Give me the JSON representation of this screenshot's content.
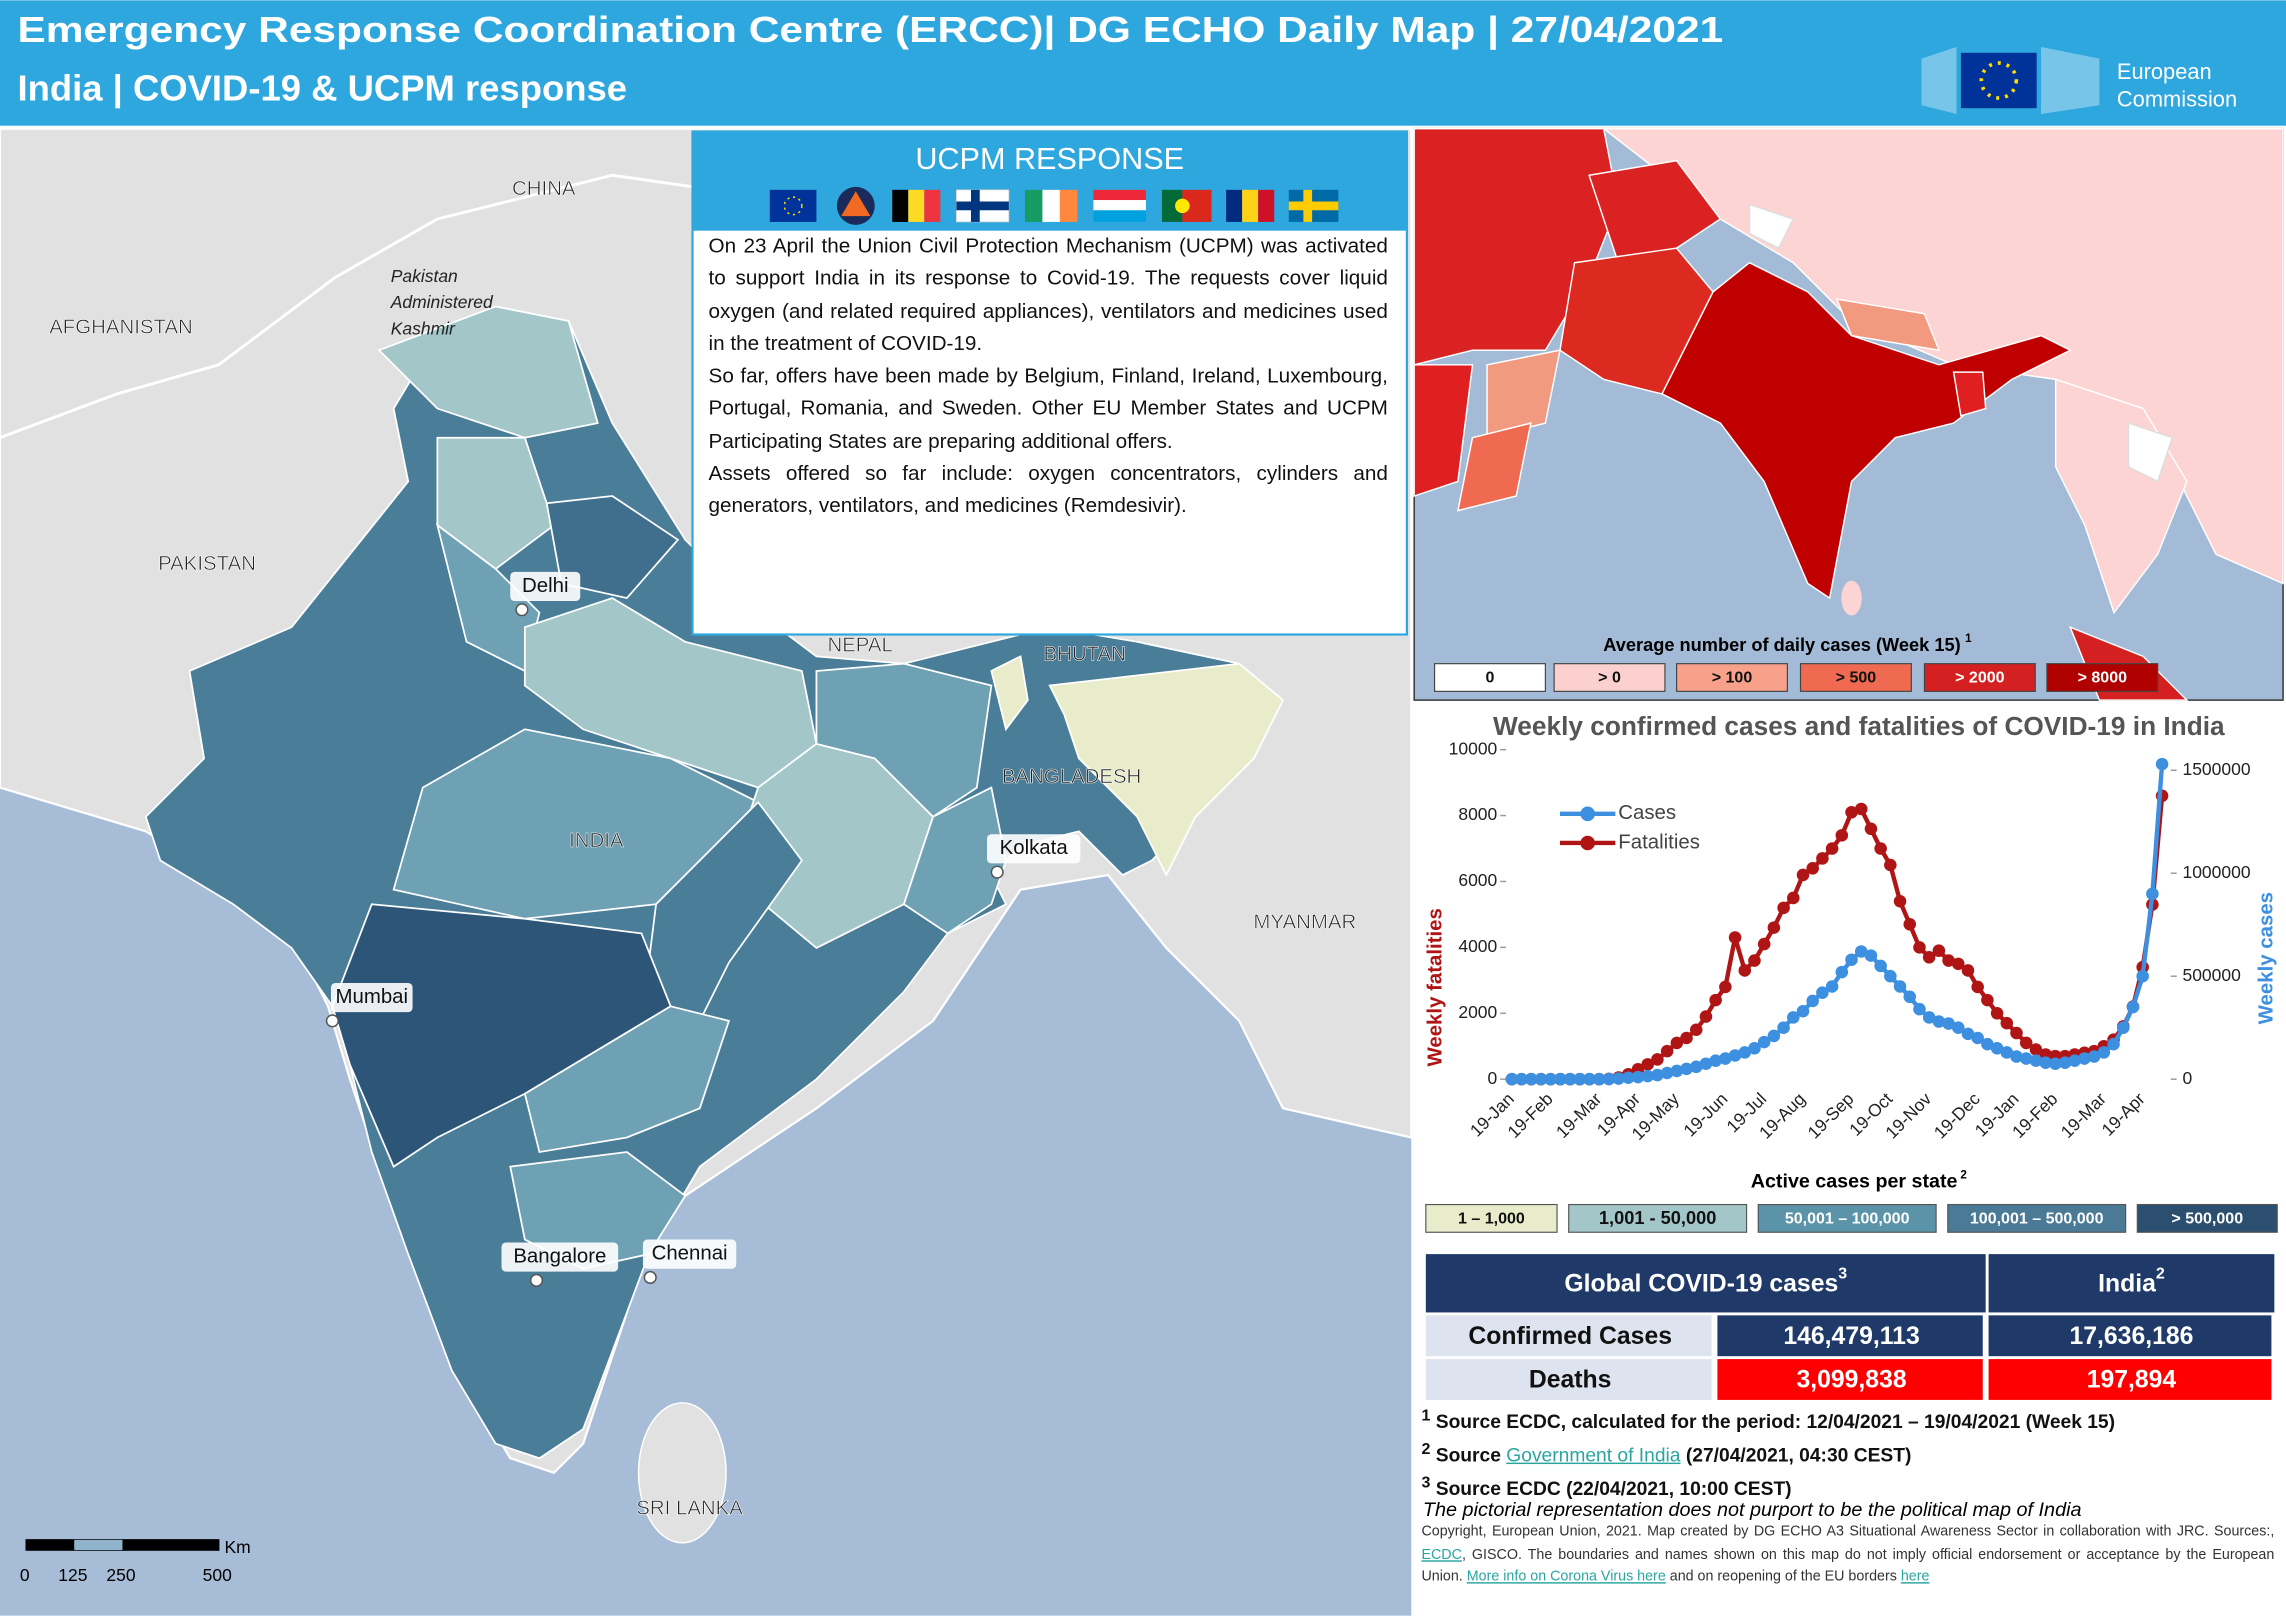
{
  "header": {
    "title_line1": "Emergency Response Coordination Centre (ERCC)| DG ECHO Daily Map | 27/04/2021",
    "title_line2": "India | COVID-19 & UCPM response",
    "logo_lines": [
      "European",
      "Commission"
    ]
  },
  "map": {
    "countries": [
      "CHINA",
      "AFGHANISTAN",
      "PAKISTAN",
      "NEPAL",
      "BHUTAN",
      "BANGLADESH",
      "INDIA",
      "MYANMAR",
      "SRI LANKA"
    ],
    "disputed_lines": [
      "Pakistan",
      "Administered",
      "Kashmir"
    ],
    "cities": [
      "Delhi",
      "Kolkata",
      "Mumbai",
      "Bangalore",
      "Chennai"
    ],
    "scale_labels": [
      "0",
      "125",
      "250",
      "500"
    ],
    "scale_unit": "Km"
  },
  "ucpm": {
    "title": "UCPM RESPONSE",
    "paragraphs": [
      "On 23 April the Union Civil Protection Mechanism (UCPM) was activated to support India in its response to Covid-19. The requests cover liquid oxygen (and related required appliances), ventilators and medicines used in the treatment of COVID-19.",
      "So far, offers have been made by Belgium, Finland, Ireland, Luxembourg, Portugal, Romania, and Sweden. Other EU Member States and UCPM Participating States are preparing additional offers.",
      "Assets offered so far include: oxygen concentrators, cylinders and generators, ventilators, and medicines (Remdesivir)."
    ]
  },
  "inset_map": {
    "legend_title": "Average number of daily cases (Week 15)",
    "legend_title_sup": "1",
    "legend": [
      "0",
      "> 0",
      "> 100",
      "> 500",
      "> 2000",
      "> 8000"
    ]
  },
  "chart_data": {
    "type": "line",
    "title": "Weekly confirmed cases and fatalities of COVID-19 in India",
    "y_label": "Weekly fatalities",
    "y2_label": "Weekly cases",
    "legend": "upper left",
    "categories": [
      "19-Jan",
      null,
      null,
      null,
      "19-Feb",
      null,
      null,
      null,
      null,
      "19-Mar",
      null,
      null,
      null,
      "19-Apr",
      null,
      null,
      null,
      "19-May",
      null,
      null,
      null,
      null,
      "19-Jun",
      null,
      null,
      null,
      "19-Jul",
      null,
      null,
      null,
      "19-Aug",
      null,
      null,
      null,
      null,
      "19-Sep",
      null,
      null,
      null,
      "19-Oct",
      null,
      null,
      null,
      "19-Nov",
      null,
      null,
      null,
      null,
      "19-Dec",
      null,
      null,
      null,
      "19-Jan",
      null,
      null,
      null,
      "19-Feb",
      null,
      null,
      null,
      null,
      "19-Mar",
      null,
      null,
      null,
      "19-Apr",
      null,
      null
    ],
    "series": [
      {
        "name": "Cases",
        "color": "#3d8fe0",
        "axis": "y2",
        "values": [
          0,
          0,
          0,
          0,
          0,
          0,
          0,
          0,
          0,
          0,
          500,
          3000,
          7000,
          10000,
          15000,
          20000,
          30000,
          40000,
          50000,
          60000,
          75000,
          90000,
          100000,
          115000,
          130000,
          150000,
          180000,
          210000,
          250000,
          300000,
          330000,
          380000,
          420000,
          450000,
          520000,
          580000,
          620000,
          600000,
          550000,
          500000,
          450000,
          400000,
          340000,
          300000,
          280000,
          270000,
          250000,
          220000,
          200000,
          170000,
          150000,
          130000,
          110000,
          100000,
          90000,
          80000,
          75000,
          80000,
          90000,
          100000,
          110000,
          130000,
          170000,
          250000,
          350000,
          500000,
          900000,
          1530000
        ]
      },
      {
        "name": "Fatalities",
        "color": "#b01515",
        "values": [
          0,
          0,
          0,
          0,
          0,
          0,
          0,
          0,
          0,
          0,
          10,
          50,
          150,
          300,
          450,
          600,
          850,
          1100,
          1250,
          1500,
          1900,
          2400,
          2800,
          4300,
          3300,
          3600,
          4100,
          4600,
          5200,
          5500,
          6200,
          6400,
          6700,
          7000,
          7400,
          8100,
          8200,
          7600,
          7000,
          6500,
          5400,
          4700,
          4000,
          3700,
          3900,
          3600,
          3500,
          3300,
          2800,
          2400,
          2000,
          1700,
          1400,
          1100,
          900,
          750,
          700,
          700,
          750,
          800,
          850,
          1000,
          1200,
          1600,
          2200,
          3400,
          5300,
          8600
        ]
      }
    ],
    "ylim": [
      0,
      10000
    ],
    "yticks": [
      0,
      2000,
      4000,
      6000,
      8000,
      10000
    ],
    "y2lim": [
      0,
      1600000
    ],
    "y2ticks": [
      0,
      500000,
      1000000,
      1500000
    ],
    "grid": false
  },
  "active_legend": {
    "title": "Active cases per state",
    "title_sup": "2",
    "items": [
      "1 – 1,000",
      "1,001 - 50,000",
      "50,001 – 100,000",
      "100,001 – 500,000",
      "> 500,000"
    ]
  },
  "table": {
    "header": [
      "Global COVID-19 cases",
      "India"
    ],
    "header_sups": [
      "3",
      "2"
    ],
    "rows": [
      [
        "Confirmed Cases",
        "146,479,113",
        "17,636,186"
      ],
      [
        "Deaths",
        "3,099,838",
        "197,894"
      ]
    ]
  },
  "footnotes": {
    "note1": {
      "sup": "1",
      "text": "Source ECDC, calculated for the period: 12/04/2021 – 19/04/2021 (Week 15)"
    },
    "note2": {
      "sup": "2",
      "text": "Source",
      "link": "Government of India",
      "rest": "(27/04/2021, 04:30 CEST)"
    },
    "note3": {
      "sup": "3",
      "text": "Source ECDC  (22/04/2021, 10:00 CEST)"
    }
  },
  "disclaimer": "The pictorial representation does not purport to be the political map of India",
  "copyright": {
    "part1": "Copyright, European Union, 2021. Map created by DG ECHO A3 Situational Awareness Sector in collaboration with JRC.  Sources:,",
    "link1": "ECDC",
    "part2": ", GISCO. The boundaries and names shown on this map do not imply official endorsement or acceptance  by the European Union.",
    "link2": "More info on Corona Virus here",
    "part3": "and on reopening of the EU borders",
    "link3": "here"
  }
}
